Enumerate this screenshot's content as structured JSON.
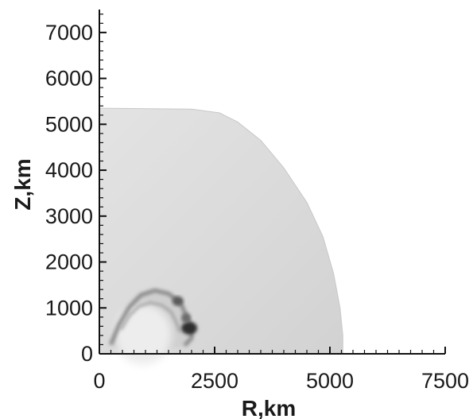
{
  "chart_data": {
    "type": "heatmap",
    "title": "",
    "xlabel": "R,km",
    "ylabel": "Z,km",
    "xlim": [
      0,
      7500
    ],
    "ylim": [
      0,
      7500
    ],
    "x_ticks": [
      "0",
      "2500",
      "5000",
      "7500"
    ],
    "x_tick_values": [
      0,
      2500,
      5000,
      7500
    ],
    "y_ticks": [
      "0",
      "1000",
      "2000",
      "3000",
      "4000",
      "5000",
      "6000",
      "7000"
    ],
    "y_tick_values": [
      0,
      1000,
      2000,
      3000,
      4000,
      5000,
      6000,
      7000
    ],
    "grid": false,
    "colormap": "grayscale",
    "outer_boundary": {
      "points": [
        [
          0,
          5350
        ],
        [
          2000,
          5330
        ],
        [
          2600,
          5250
        ],
        [
          3000,
          5050
        ],
        [
          3500,
          4650
        ],
        [
          4000,
          4050
        ],
        [
          4500,
          3300
        ],
        [
          4850,
          2550
        ],
        [
          5080,
          1750
        ],
        [
          5220,
          1000
        ],
        [
          5280,
          400
        ],
        [
          5280,
          0
        ]
      ]
    },
    "inner_structure": {
      "points": [
        [
          250,
          200
        ],
        [
          420,
          620
        ],
        [
          650,
          1020
        ],
        [
          900,
          1280
        ],
        [
          1200,
          1380
        ],
        [
          1500,
          1310
        ],
        [
          1750,
          1120
        ],
        [
          1880,
          850
        ],
        [
          1980,
          560
        ],
        [
          2000,
          350
        ],
        [
          1850,
          180
        ],
        [
          1300,
          80
        ],
        [
          700,
          60
        ]
      ]
    },
    "colors": {
      "outer_region": "#dadada",
      "inner_region": "#cfcfcf",
      "filament": "#8a8a8a",
      "dark_knot": "#2e2e2e",
      "light_core": "#ededed"
    }
  }
}
